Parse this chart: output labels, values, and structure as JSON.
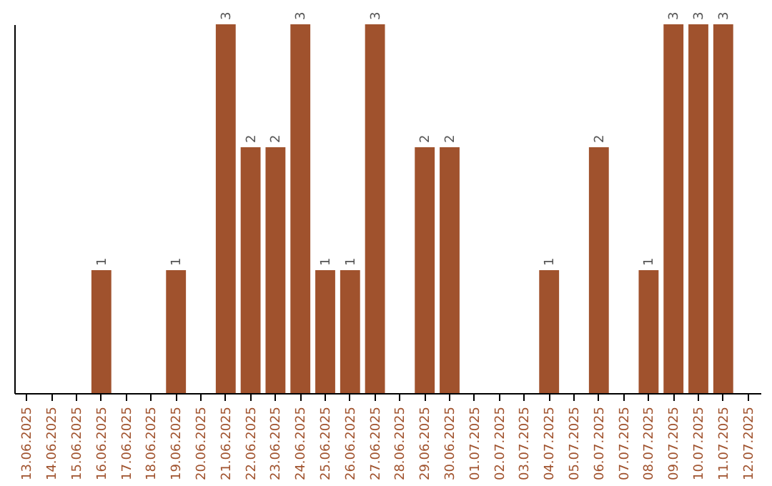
{
  "chart_data": {
    "type": "bar",
    "categories": [
      "13.06.2025",
      "14.06.2025",
      "15.06.2025",
      "16.06.2025",
      "17.06.2025",
      "18.06.2025",
      "19.06.2025",
      "20.06.2025",
      "21.06.2025",
      "22.06.2025",
      "23.06.2025",
      "24.06.2025",
      "25.06.2025",
      "26.06.2025",
      "27.06.2025",
      "28.06.2025",
      "29.06.2025",
      "30.06.2025",
      "01.07.2025",
      "02.07.2025",
      "03.07.2025",
      "04.07.2025",
      "05.07.2025",
      "06.07.2025",
      "07.07.2025",
      "08.07.2025",
      "09.07.2025",
      "10.07.2025",
      "11.07.2025",
      "12.07.2025"
    ],
    "values": [
      0,
      0,
      0,
      1,
      0,
      0,
      1,
      0,
      3,
      2,
      2,
      3,
      1,
      1,
      3,
      0,
      2,
      2,
      0,
      0,
      0,
      1,
      0,
      2,
      0,
      1,
      3,
      3,
      3,
      0
    ],
    "value_labels": [
      null,
      null,
      null,
      "1",
      null,
      null,
      "1",
      null,
      "3",
      "2",
      "2",
      "3",
      "1",
      "1",
      "3",
      null,
      "2",
      "2",
      null,
      null,
      null,
      "1",
      null,
      "2",
      null,
      "1",
      "3",
      "3",
      "3",
      null
    ],
    "color": "#a0522d",
    "grid": false
  }
}
